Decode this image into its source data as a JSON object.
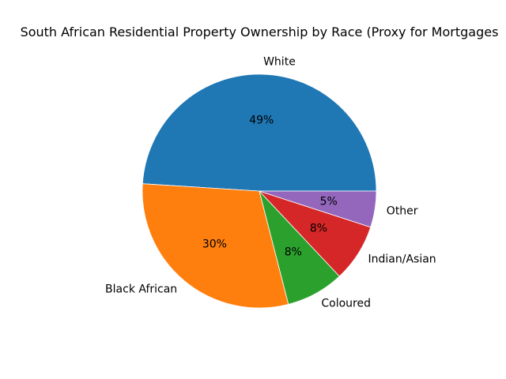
{
  "title": "South African Residential Property Ownership by Race (Proxy for Mortgages",
  "chart_data": {
    "type": "pie",
    "title": "South African Residential Property Ownership by Race (Proxy for Mortgages",
    "labels": [
      "White",
      "Black African",
      "Coloured",
      "Indian/Asian",
      "Other"
    ],
    "values": [
      49,
      30,
      8,
      8,
      5
    ],
    "pct_labels": [
      "49%",
      "30%",
      "8%",
      "8%",
      "5%"
    ],
    "colors": [
      "#1f77b4",
      "#ff7f0e",
      "#2ca02c",
      "#d62728",
      "#9467bd"
    ],
    "start_angle_deg": 0,
    "direction": "counterclockwise",
    "label_distance": 1.1,
    "pct_distance": 0.6,
    "legend": "none",
    "background": "#ffffff",
    "text_color": "#000000"
  }
}
